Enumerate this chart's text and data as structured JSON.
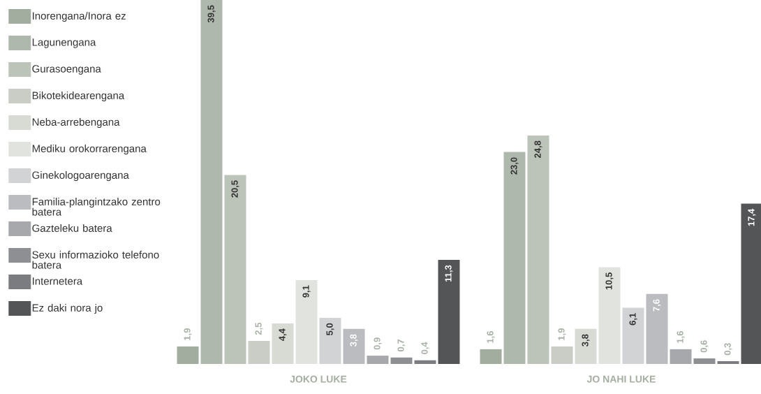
{
  "chart_data": {
    "type": "bar",
    "categories": [
      "JOKO LUKE",
      "JO NAHI LUKE"
    ],
    "legend": "left",
    "series": [
      {
        "name": "Inorengana/Inora ez",
        "color": "#a2ad9f",
        "values": [
          1.9,
          1.6
        ],
        "value_labels": [
          "1,9",
          "1,6"
        ]
      },
      {
        "name": "Lagunengana",
        "color": "#aeb8ad",
        "values": [
          39.5,
          23.0
        ],
        "value_labels": [
          "39,5",
          "23,0"
        ]
      },
      {
        "name": "Gurasoengana",
        "color": "#bcc3b9",
        "values": [
          20.5,
          24.8
        ],
        "value_labels": [
          "20,5",
          "24,8"
        ]
      },
      {
        "name": "Bikotekidearengana",
        "color": "#c9cdc5",
        "values": [
          2.5,
          1.9
        ],
        "value_labels": [
          "2,5",
          "1,9"
        ]
      },
      {
        "name": "Neba-arrebengana",
        "color": "#d8dad4",
        "values": [
          4.4,
          3.8
        ],
        "value_labels": [
          "4,4",
          "3,8"
        ]
      },
      {
        "name": "Mediku orokorrarengana",
        "color": "#e1e3de",
        "values": [
          9.1,
          10.5
        ],
        "value_labels": [
          "9,1",
          "10,5"
        ]
      },
      {
        "name": "Ginekologoarengana",
        "color": "#d2d3d5",
        "values": [
          5.0,
          6.1
        ],
        "value_labels": [
          "5,0",
          "6,1"
        ]
      },
      {
        "name": "Familia-plangintzako zentro batera",
        "color": "#bbbcc0",
        "values": [
          3.8,
          7.6
        ],
        "value_labels": [
          "3,8",
          "7,6"
        ]
      },
      {
        "name": "Gazteleku batera",
        "color": "#a7a8ac",
        "values": [
          0.9,
          1.6
        ],
        "value_labels": [
          "0,9",
          "1,6"
        ]
      },
      {
        "name": "Sexu informazioko telefono batera",
        "color": "#8e8f93",
        "values": [
          0.7,
          0.6
        ],
        "value_labels": [
          "0,7",
          "0,6"
        ]
      },
      {
        "name": "Internetera",
        "color": "#7b7c80",
        "values": [
          0.4,
          0.3
        ],
        "value_labels": [
          "0,4",
          "0,3"
        ]
      },
      {
        "name": "Ez daki nora jo",
        "color": "#545557",
        "values": [
          11.3,
          17.4
        ],
        "value_labels": [
          "11,3",
          "17,4"
        ]
      }
    ]
  }
}
